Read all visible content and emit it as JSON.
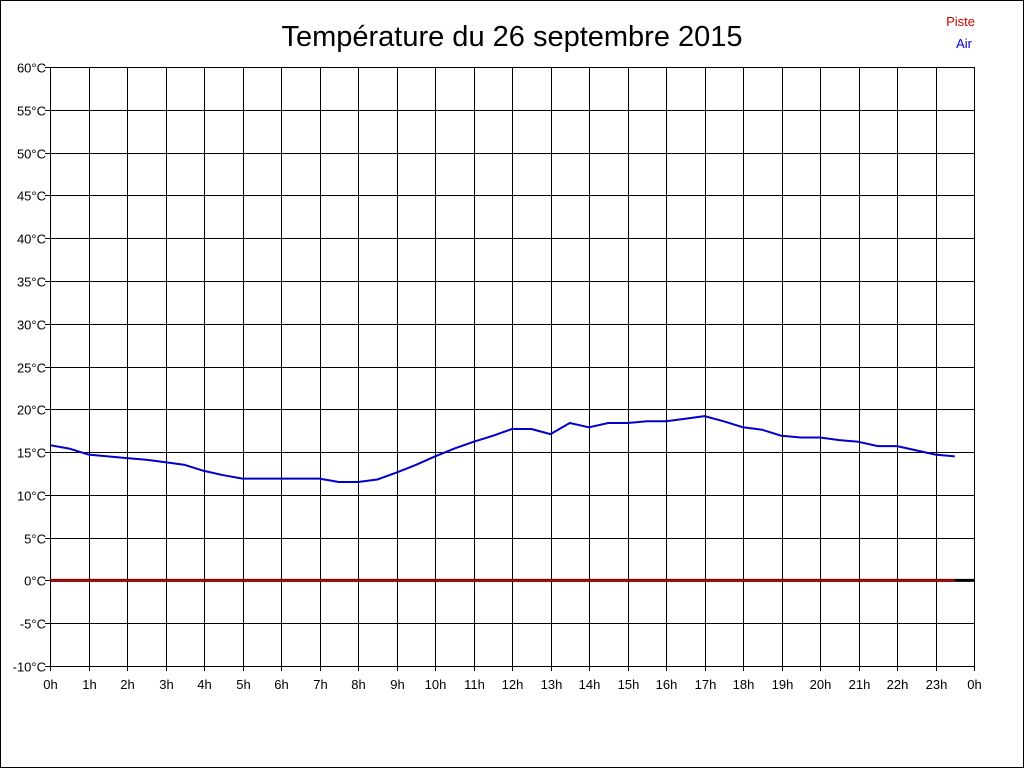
{
  "chart_data": {
    "type": "line",
    "title": "Température du 26 septembre 2015",
    "xlabel": "",
    "ylabel": "",
    "x_tick_labels": [
      "0h",
      "1h",
      "2h",
      "3h",
      "4h",
      "5h",
      "6h",
      "7h",
      "8h",
      "9h",
      "10h",
      "11h",
      "12h",
      "13h",
      "14h",
      "15h",
      "16h",
      "17h",
      "18h",
      "19h",
      "20h",
      "21h",
      "22h",
      "23h",
      "0h"
    ],
    "y_tick_labels": [
      "60°C",
      "55°C",
      "50°C",
      "45°C",
      "40°C",
      "35°C",
      "30°C",
      "25°C",
      "20°C",
      "15°C",
      "10°C",
      "5°C",
      "0°C",
      "-5°C",
      "-10°C"
    ],
    "xlim": [
      0,
      24
    ],
    "ylim": [
      -10,
      60
    ],
    "grid": true,
    "legend_position": "top-right",
    "series": [
      {
        "name": "Piste",
        "color": "#cc0000",
        "x": [
          0,
          23.5
        ],
        "y": [
          0,
          0
        ]
      },
      {
        "name": "Air",
        "color": "#0000cc",
        "x": [
          0,
          0.5,
          1,
          1.5,
          2,
          2.5,
          3,
          3.5,
          4,
          4.5,
          5,
          5.5,
          6,
          6.5,
          7,
          7.5,
          8,
          8.5,
          9,
          9.5,
          10,
          10.5,
          11,
          11.5,
          12,
          12.5,
          13,
          13.5,
          14,
          14.5,
          15,
          15.5,
          16,
          16.5,
          17,
          17.5,
          18,
          18.5,
          19,
          19.5,
          20,
          20.5,
          21,
          21.5,
          22,
          22.5,
          23,
          23.5
        ],
        "y": [
          15.8,
          15.4,
          14.7,
          14.5,
          14.3,
          14.1,
          13.8,
          13.5,
          12.8,
          12.3,
          11.9,
          11.9,
          11.9,
          11.9,
          11.9,
          11.5,
          11.5,
          11.8,
          12.6,
          13.5,
          14.5,
          15.4,
          16.2,
          16.9,
          17.7,
          17.7,
          17.1,
          18.4,
          17.9,
          18.4,
          18.4,
          18.6,
          18.6,
          18.9,
          19.2,
          18.6,
          17.9,
          17.6,
          16.9,
          16.7,
          16.7,
          16.4,
          16.2,
          15.7,
          15.7,
          15.2,
          14.7,
          14.5
        ]
      }
    ]
  }
}
